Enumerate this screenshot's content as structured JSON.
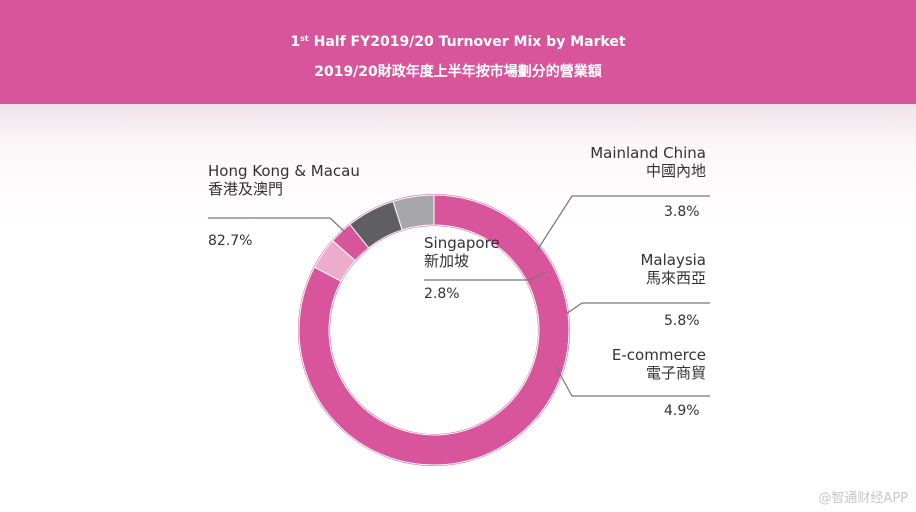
{
  "header": {
    "title_prefix": "1",
    "title_sup": "st",
    "title_rest": " Half FY2019/20 Turnover Mix by Market",
    "subtitle_zh": "2019/20財政年度上半年按市場劃分的營業額"
  },
  "chart_data": {
    "type": "pie",
    "title": "1st Half FY2019/20 Turnover Mix by Market",
    "subtitle": "2019/20財政年度上半年按市場劃分的營業額",
    "categories": [
      "Hong Kong & Macau",
      "Mainland China",
      "Singapore",
      "Malaysia",
      "E-commerce"
    ],
    "categories_zh": [
      "香港及澳門",
      "中國內地",
      "新加坡",
      "馬來西亞",
      "電子商貿"
    ],
    "values": [
      82.7,
      3.8,
      2.8,
      5.8,
      4.9
    ],
    "value_labels": [
      "82.7%",
      "3.8%",
      "2.8%",
      "5.8%",
      "4.9%"
    ],
    "colors": [
      "#d8559c",
      "#eeaccd",
      "#d8559c",
      "#5f5f63",
      "#a7a7aa"
    ],
    "donut": true,
    "start_angle_deg": 90
  },
  "watermark": "@智通财经APP"
}
